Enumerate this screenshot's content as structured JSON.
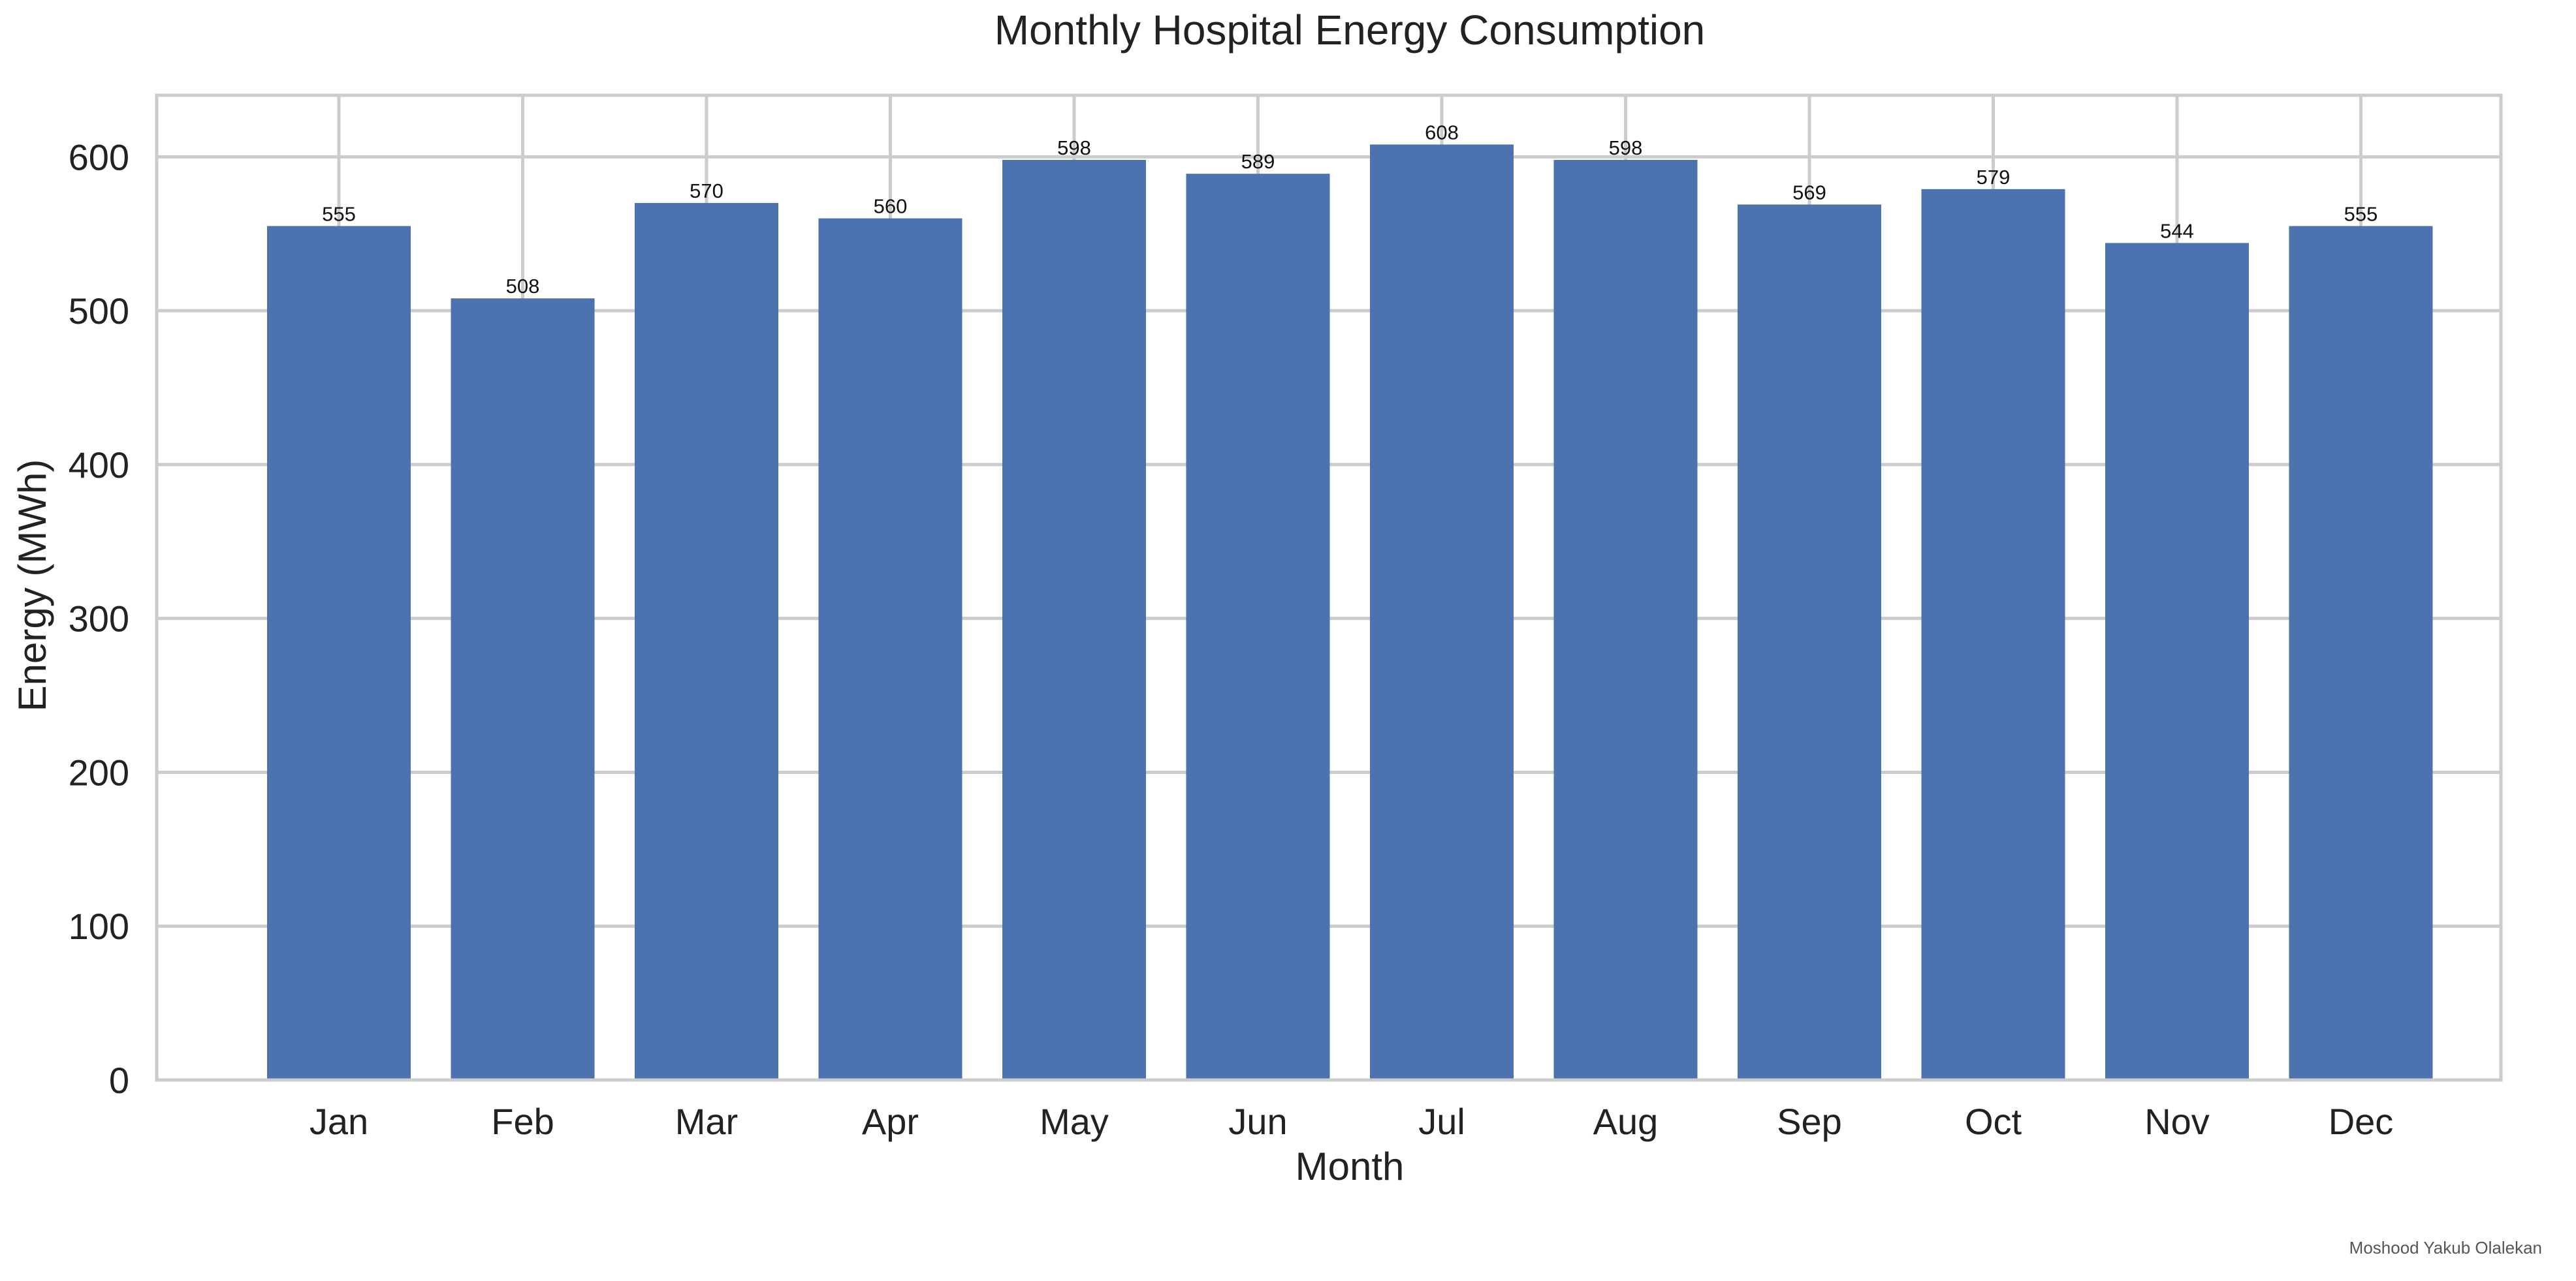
{
  "chart_data": {
    "type": "bar",
    "title": "Monthly Hospital Energy Consumption",
    "xlabel": "Month",
    "ylabel": "Energy (MWh)",
    "categories": [
      "Jan",
      "Feb",
      "Mar",
      "Apr",
      "May",
      "Jun",
      "Jul",
      "Aug",
      "Sep",
      "Oct",
      "Nov",
      "Dec"
    ],
    "values": [
      555,
      508,
      570,
      560,
      598,
      589,
      608,
      598,
      569,
      579,
      544,
      555
    ],
    "data_labels": [
      "555",
      "508",
      "570",
      "560",
      "598",
      "589",
      "608",
      "598",
      "569",
      "579",
      "544",
      "555"
    ],
    "ylim": [
      0,
      640
    ],
    "yticks": [
      0,
      100,
      200,
      300,
      400,
      500,
      600
    ],
    "grid": true,
    "legend": "none",
    "bar_color": "#4c72b0",
    "grid_color": "#cccccc"
  },
  "credit": "Moshood Yakub Olalekan"
}
